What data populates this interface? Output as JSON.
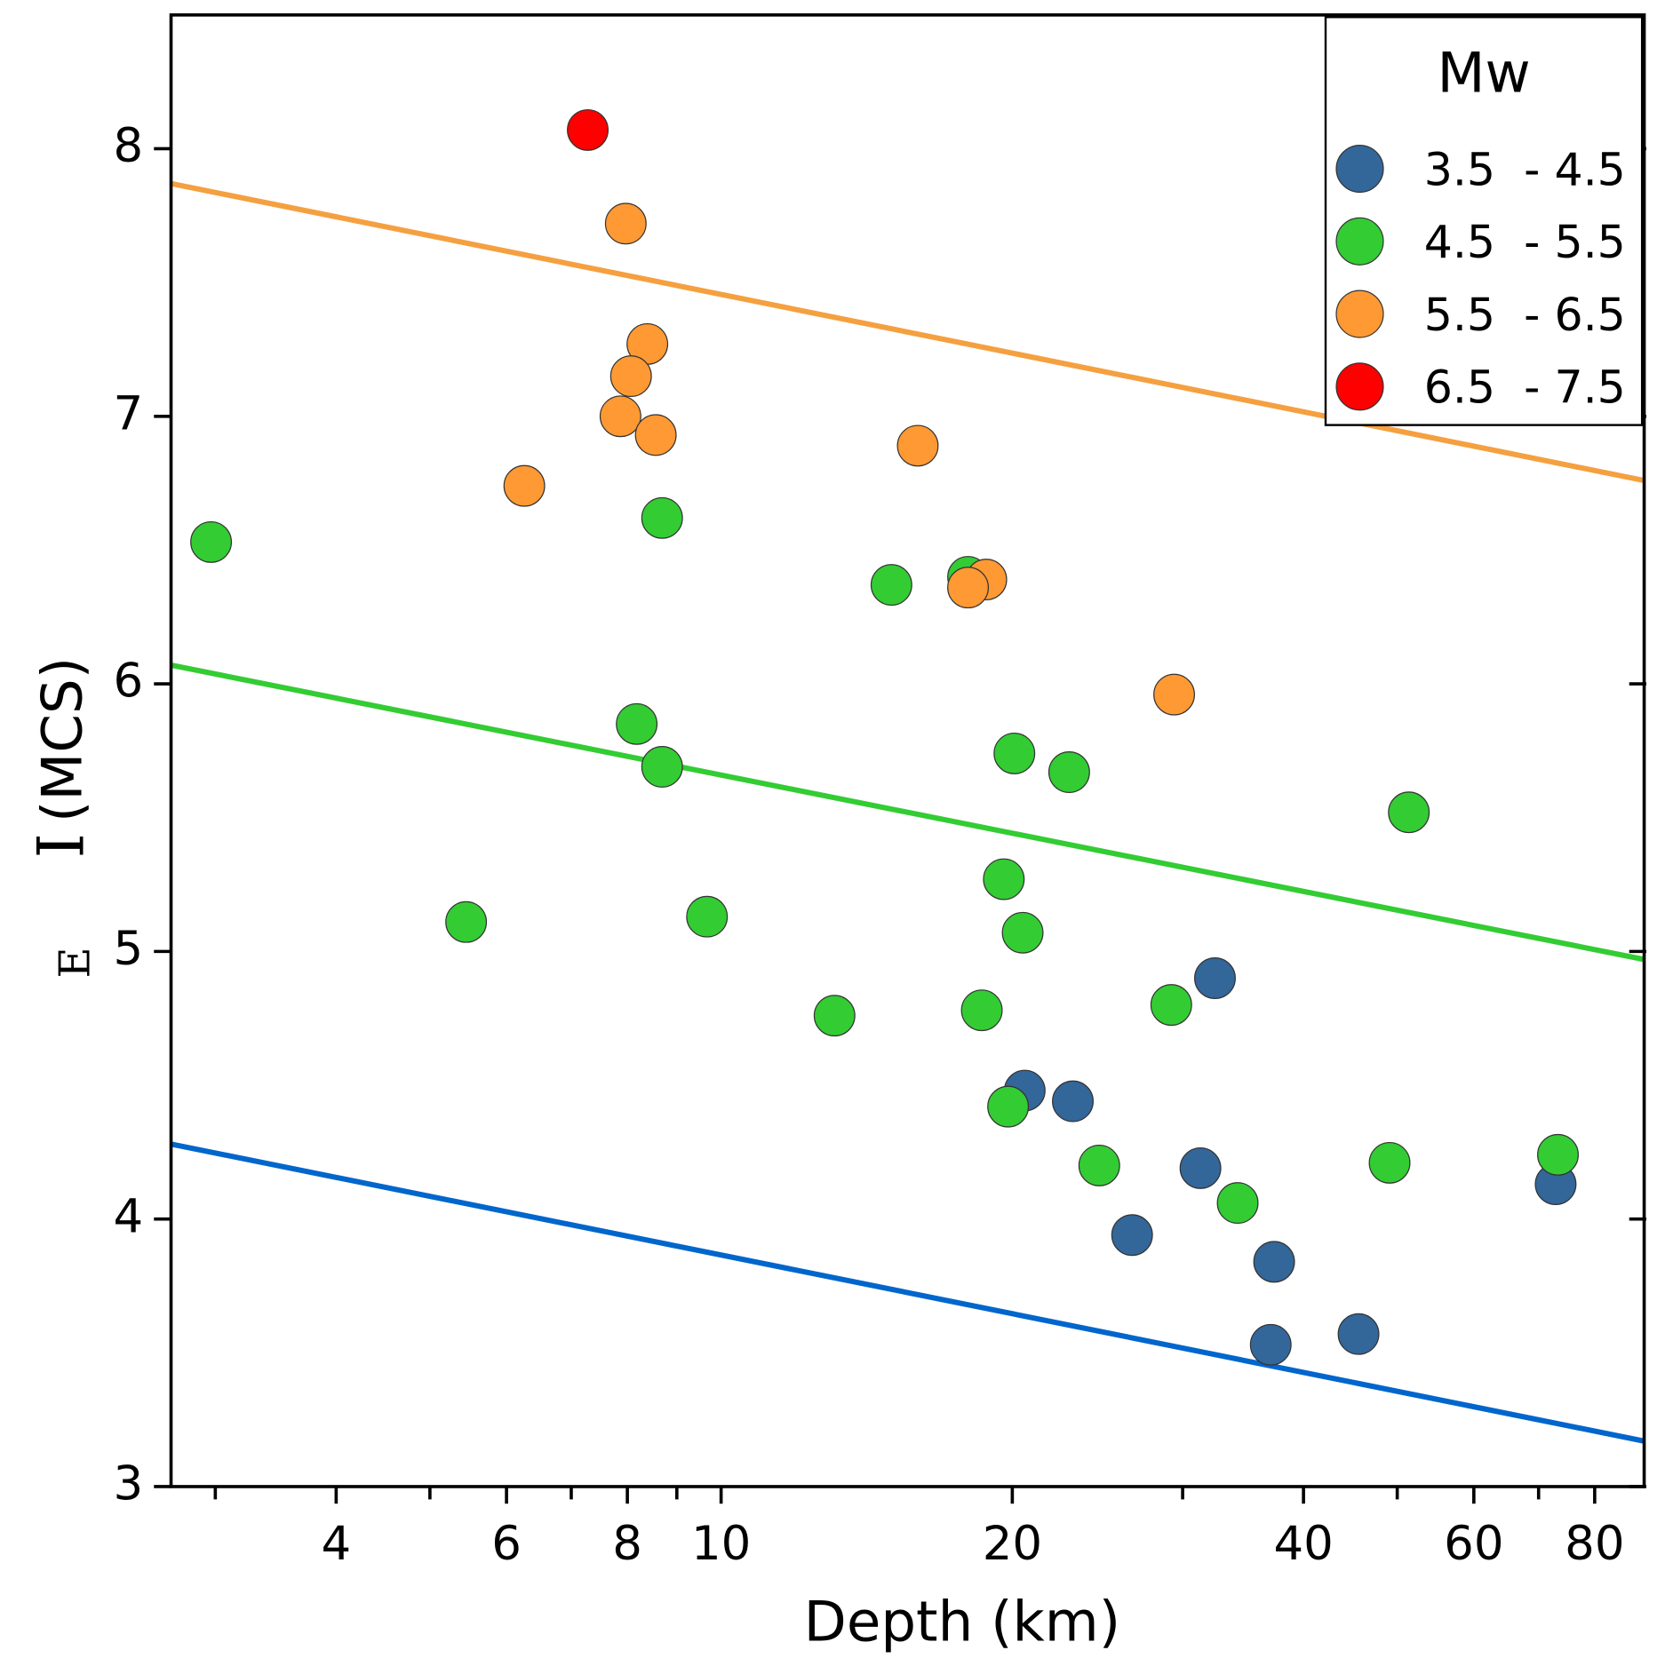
{
  "chart_data": {
    "type": "scatter",
    "xlabel": "Depth (km)",
    "ylabel": {
      "main": "I",
      "sub": "E",
      "rest": "(MCS)"
    },
    "legend_title": "Mw",
    "legend": "upper right",
    "xscale": "log",
    "xlim": [
      2.7,
      90
    ],
    "ylim": [
      3,
      8.5
    ],
    "xticks": [
      4,
      6,
      8,
      10,
      20,
      40,
      60,
      80
    ],
    "xminorticks": [
      3,
      5,
      7,
      9,
      30,
      50,
      70
    ],
    "yticks": [
      3,
      4,
      5,
      6,
      7,
      8
    ],
    "series": [
      {
        "name": "3.5  - 4.5",
        "color": "#336699",
        "x": [
          32.4,
          20.6,
          23.1,
          31.3,
          26.6,
          37.3,
          37.0,
          45.6,
          72.9
        ],
        "values": [
          4.9,
          4.48,
          4.44,
          4.19,
          3.94,
          3.84,
          3.53,
          3.57,
          4.13
        ]
      },
      {
        "name": "4.5  - 5.5",
        "color": "#33cc33",
        "x": [
          2.97,
          8.69,
          15.0,
          18.0,
          8.18,
          8.69,
          5.45,
          9.67,
          13.1,
          20.1,
          22.9,
          19.6,
          20.5,
          18.6,
          19.8,
          29.2,
          24.6,
          34.2,
          51.4,
          49.1,
          73.3
        ],
        "values": [
          6.53,
          6.62,
          6.37,
          6.4,
          5.85,
          5.69,
          5.11,
          5.13,
          4.76,
          5.74,
          5.67,
          5.27,
          5.07,
          4.78,
          4.42,
          4.8,
          4.2,
          4.06,
          5.52,
          4.21,
          4.24
        ]
      },
      {
        "name": "5.5  - 6.5",
        "color": "#ff9933",
        "x": [
          7.97,
          8.39,
          8.07,
          7.87,
          8.56,
          6.26,
          15.97,
          18.8,
          18.0,
          29.4
        ],
        "values": [
          7.72,
          7.27,
          7.15,
          7.0,
          6.93,
          6.74,
          6.89,
          6.39,
          6.36,
          5.96
        ]
      },
      {
        "name": "6.5  - 7.5",
        "color": "#ff0000",
        "x": [
          7.28
        ],
        "values": [
          8.07
        ]
      }
    ],
    "fits": [
      {
        "color": "#0066cc",
        "x": [
          2.7,
          90
        ],
        "values": [
          4.28,
          3.17
        ]
      },
      {
        "color": "#33cc33",
        "x": [
          2.7,
          90
        ],
        "values": [
          6.07,
          4.97
        ]
      },
      {
        "color": "#f5a040",
        "x": [
          2.7,
          90
        ],
        "values": [
          7.87,
          6.76
        ]
      }
    ]
  }
}
